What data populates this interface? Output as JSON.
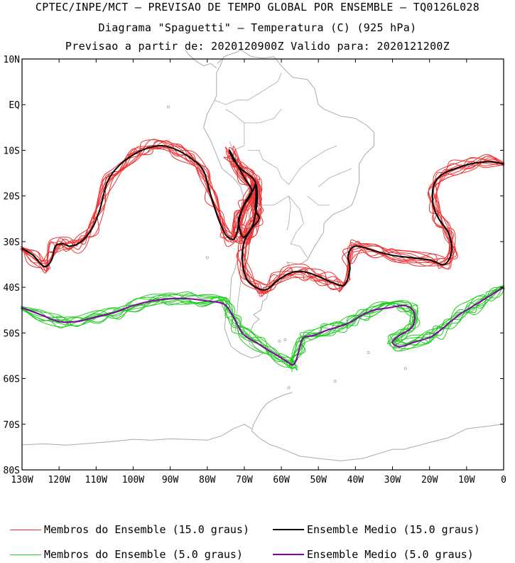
{
  "header": {
    "line1": "CPTEC/INPE/MCT – PREVISAO DE TEMPO GLOBAL POR ENSEMBLE – TQ0126L028",
    "line2": "Diagrama \"Spaguetti\" – Temperatura (C) (925 hPa)",
    "line3": "Previsao a partir de: 2020120900Z  Valido para: 2020121200Z"
  },
  "map": {
    "lat_labels": [
      "10N",
      "EQ",
      "10S",
      "20S",
      "30S",
      "40S",
      "50S",
      "60S",
      "70S",
      "80S"
    ],
    "lon_labels": [
      "130W",
      "120W",
      "110W",
      "100W",
      "90W",
      "80W",
      "70W",
      "60W",
      "50W",
      "40W",
      "30W",
      "20W",
      "10W",
      "0"
    ],
    "lon_range": [
      -130,
      0
    ],
    "lat_range": [
      -80,
      10
    ],
    "coastline_color": "#aaaaaa"
  },
  "contours": {
    "iso15": {
      "member_color": "#ee3333",
      "mean_color": "#000000",
      "member_count": 10,
      "mean_path": [
        [
          -130,
          -31.5
        ],
        [
          -127,
          -33
        ],
        [
          -124,
          -35.5
        ],
        [
          -122,
          -34
        ],
        [
          -121,
          -31
        ],
        [
          -119,
          -30.5
        ],
        [
          -117,
          -31
        ],
        [
          -114,
          -30
        ],
        [
          -111,
          -27
        ],
        [
          -109,
          -23
        ],
        [
          -107,
          -17
        ],
        [
          -104,
          -13.5
        ],
        [
          -100,
          -11
        ],
        [
          -96,
          -9.5
        ],
        [
          -92,
          -9
        ],
        [
          -88,
          -10
        ],
        [
          -84,
          -12
        ],
        [
          -81,
          -14.5
        ],
        [
          -79,
          -20
        ],
        [
          -77,
          -25
        ],
        [
          -75,
          -28.5
        ],
        [
          -73,
          -29.5
        ],
        [
          -72,
          -28
        ],
        [
          -71,
          -24
        ],
        [
          -69.5,
          -21
        ],
        [
          -67.5,
          -18.5
        ],
        [
          -67,
          -17.5
        ],
        [
          -66.8,
          -20
        ],
        [
          -67,
          -23
        ],
        [
          -66,
          -25
        ],
        [
          -68,
          -27
        ],
        [
          -70,
          -29
        ],
        [
          -71,
          -28
        ],
        [
          -71.5,
          -25
        ],
        [
          -70,
          -22
        ],
        [
          -68,
          -19
        ],
        [
          -70,
          -16
        ],
        [
          -72,
          -13
        ],
        [
          -74,
          -10
        ],
        [
          -73,
          -12
        ],
        [
          -71,
          -14
        ],
        [
          -68.5,
          -15.5
        ],
        [
          -67,
          -17
        ],
        [
          -66.5,
          -20
        ],
        [
          -67,
          -24
        ],
        [
          -68,
          -27
        ],
        [
          -70,
          -30
        ],
        [
          -70.5,
          -34
        ],
        [
          -69.5,
          -38
        ],
        [
          -67,
          -40
        ],
        [
          -64,
          -40.5
        ],
        [
          -61,
          -38.5
        ],
        [
          -58,
          -37
        ],
        [
          -55,
          -36.5
        ],
        [
          -52,
          -37
        ],
        [
          -49,
          -38
        ],
        [
          -46,
          -39
        ],
        [
          -43,
          -39.5
        ],
        [
          -41.5,
          -36
        ],
        [
          -42,
          -33
        ],
        [
          -40,
          -31
        ],
        [
          -35,
          -32
        ],
        [
          -30,
          -33
        ],
        [
          -25,
          -33.5
        ],
        [
          -20,
          -34
        ],
        [
          -16,
          -35
        ],
        [
          -14,
          -32
        ],
        [
          -15,
          -28
        ],
        [
          -17.5,
          -25
        ],
        [
          -19,
          -22
        ],
        [
          -19,
          -18
        ],
        [
          -17,
          -15.5
        ],
        [
          -13,
          -14
        ],
        [
          -9,
          -13
        ],
        [
          -4,
          -12.5
        ],
        [
          0,
          -13
        ]
      ]
    },
    "iso5": {
      "member_color": "#22cc22",
      "mean_color": "#8800aa",
      "member_count": 10,
      "mean_path": [
        [
          -130,
          -44.5
        ],
        [
          -125,
          -46
        ],
        [
          -120,
          -47.5
        ],
        [
          -115,
          -47.5
        ],
        [
          -110,
          -46.5
        ],
        [
          -105,
          -45.5
        ],
        [
          -100,
          -44
        ],
        [
          -95,
          -43
        ],
        [
          -90,
          -42.5
        ],
        [
          -85,
          -42.5
        ],
        [
          -80,
          -43
        ],
        [
          -76,
          -43.5
        ],
        [
          -74,
          -45
        ],
        [
          -72,
          -48
        ],
        [
          -70,
          -50.5
        ],
        [
          -66,
          -52.5
        ],
        [
          -62,
          -54.5
        ],
        [
          -59,
          -56
        ],
        [
          -57,
          -57
        ],
        [
          -56,
          -56
        ],
        [
          -55,
          -53
        ],
        [
          -54,
          -51
        ],
        [
          -51,
          -50.5
        ],
        [
          -48,
          -49.5
        ],
        [
          -44,
          -48.5
        ],
        [
          -41,
          -47.5
        ],
        [
          -38,
          -46
        ],
        [
          -35,
          -45
        ],
        [
          -31,
          -44.5
        ],
        [
          -27,
          -44
        ],
        [
          -24.5,
          -45
        ],
        [
          -24,
          -47
        ],
        [
          -25,
          -49
        ],
        [
          -28,
          -50.5
        ],
        [
          -30,
          -52
        ],
        [
          -28,
          -53
        ],
        [
          -24,
          -52
        ],
        [
          -20,
          -51
        ],
        [
          -18,
          -50
        ],
        [
          -15,
          -48
        ],
        [
          -12,
          -46
        ],
        [
          -9,
          -44.5
        ],
        [
          -6,
          -43
        ],
        [
          -3,
          -41.5
        ],
        [
          0,
          -40
        ]
      ]
    }
  },
  "legend": {
    "members_15": "Membros do Ensemble (15.0 graus)",
    "mean_15": "Ensemble Medio (15.0 graus)",
    "members_5": "Membros do Ensemble (5.0 graus)",
    "mean_5": "Ensemble Medio (5.0 graus)"
  }
}
